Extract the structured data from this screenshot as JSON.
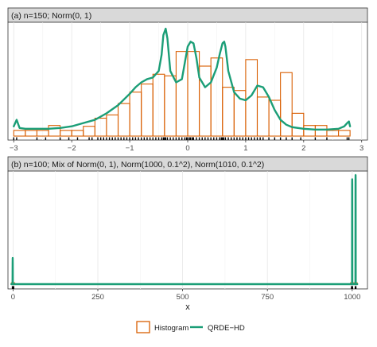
{
  "colors": {
    "histogram": "#D95F02",
    "density": "#1B9E77",
    "strip_bg": "#D9D9D9",
    "grid_major": "#E6E6E6",
    "grid_minor": "#F2F2F2",
    "rug": "#000000"
  },
  "chart_data": [
    {
      "type": "histogram",
      "panel_title": "(a) n=150; Norm(0, 1)",
      "xlim": [
        -3.1,
        3.1
      ],
      "x_ticks": [
        -3,
        -2,
        -1,
        0,
        1,
        2,
        3
      ],
      "x_tick_labels": [
        "−3",
        "−2",
        "−1",
        "0",
        "1",
        "2",
        "3"
      ],
      "grid": true,
      "series": [
        {
          "name": "Histogram",
          "kind": "histogram",
          "bin_edges": [
            -3.0,
            -2.8,
            -2.6,
            -2.4,
            -2.2,
            -2.0,
            -1.8,
            -1.6,
            -1.4,
            -1.2,
            -1.0,
            -0.8,
            -0.6,
            -0.4,
            -0.2,
            0.0,
            0.2,
            0.4,
            0.6,
            0.8,
            1.0,
            1.2,
            1.4,
            1.6,
            1.8,
            2.0,
            2.2,
            2.4,
            2.6,
            2.8
          ],
          "density": [
            0.035,
            0.035,
            0.035,
            0.065,
            0.035,
            0.035,
            0.06,
            0.11,
            0.13,
            0.2,
            0.27,
            0.32,
            0.38,
            0.37,
            0.52,
            0.52,
            0.43,
            0.48,
            0.3,
            0.28,
            0.47,
            0.24,
            0.22,
            0.39,
            0.14,
            0.065,
            0.065,
            0.035,
            0.035
          ]
        },
        {
          "name": "QRDE−HD",
          "kind": "line",
          "x": [
            -3.0,
            -2.95,
            -2.9,
            -2.8,
            -2.6,
            -2.4,
            -2.2,
            -2.0,
            -1.8,
            -1.6,
            -1.4,
            -1.2,
            -1.0,
            -0.9,
            -0.8,
            -0.7,
            -0.6,
            -0.5,
            -0.45,
            -0.42,
            -0.38,
            -0.35,
            -0.3,
            -0.2,
            -0.1,
            -0.05,
            0.0,
            0.05,
            0.1,
            0.15,
            0.2,
            0.3,
            0.4,
            0.5,
            0.55,
            0.6,
            0.63,
            0.65,
            0.7,
            0.8,
            0.9,
            1.0,
            1.1,
            1.2,
            1.3,
            1.4,
            1.5,
            1.6,
            1.7,
            1.8,
            2.0,
            2.2,
            2.4,
            2.6,
            2.7,
            2.75,
            2.78,
            2.8
          ],
          "y": [
            0.06,
            0.1,
            0.05,
            0.045,
            0.045,
            0.045,
            0.05,
            0.06,
            0.08,
            0.1,
            0.14,
            0.19,
            0.26,
            0.3,
            0.33,
            0.35,
            0.36,
            0.4,
            0.5,
            0.62,
            0.66,
            0.6,
            0.4,
            0.33,
            0.35,
            0.45,
            0.55,
            0.58,
            0.57,
            0.48,
            0.36,
            0.3,
            0.33,
            0.42,
            0.5,
            0.57,
            0.58,
            0.55,
            0.4,
            0.27,
            0.23,
            0.22,
            0.25,
            0.31,
            0.3,
            0.24,
            0.16,
            0.1,
            0.07,
            0.055,
            0.045,
            0.04,
            0.04,
            0.045,
            0.06,
            0.08,
            0.09,
            0.06
          ]
        }
      ],
      "rug": [
        -3.0,
        -2.95,
        -2.6,
        -2.45,
        -2.2,
        -2.05,
        -1.9,
        -1.7,
        -1.65,
        -1.55,
        -1.5,
        -1.45,
        -1.4,
        -1.35,
        -1.3,
        -1.25,
        -1.2,
        -1.15,
        -1.1,
        -1.05,
        -1.0,
        -0.95,
        -0.9,
        -0.85,
        -0.8,
        -0.75,
        -0.7,
        -0.65,
        -0.6,
        -0.55,
        -0.5,
        -0.45,
        -0.42,
        -0.4,
        -0.38,
        -0.35,
        -0.3,
        -0.25,
        -0.2,
        -0.15,
        -0.1,
        -0.05,
        -0.02,
        0.0,
        0.03,
        0.05,
        0.08,
        0.1,
        0.15,
        0.2,
        0.25,
        0.3,
        0.35,
        0.4,
        0.45,
        0.5,
        0.55,
        0.58,
        0.6,
        0.62,
        0.65,
        0.7,
        0.75,
        0.8,
        0.85,
        0.9,
        0.95,
        1.0,
        1.05,
        1.1,
        1.15,
        1.2,
        1.25,
        1.3,
        1.4,
        1.5,
        1.6,
        1.7,
        1.8,
        1.95,
        2.2,
        2.4,
        2.75,
        2.78
      ]
    },
    {
      "type": "histogram",
      "panel_title": "(b) n=100; Mix of Norm(0, 1), Norm(1000, 0.1^2), Norm(1010, 0.1^2)",
      "xlim": [
        -15,
        1045
      ],
      "x_ticks": [
        0,
        250,
        500,
        750,
        1000
      ],
      "x_tick_labels": [
        "0",
        "250",
        "500",
        "750",
        "1000"
      ],
      "xlabel": "x",
      "grid": true,
      "series": [
        {
          "name": "Histogram",
          "kind": "histogram",
          "bin_edges": [
            -5,
            5,
            995,
            1015
          ],
          "density": [
            0.012,
            0.0,
            0.012
          ]
        },
        {
          "name": "QRDE−HD",
          "kind": "line",
          "x": [
            -5,
            -1.5,
            -1.2,
            -1.0,
            -0.8,
            -0.5,
            5,
            995,
            999.5,
            999.8,
            1000,
            1000.2,
            1000.5,
            1004,
            1009.5,
            1009.8,
            1010,
            1010.2,
            1010.5,
            1015
          ],
          "y": [
            0.0,
            0.0,
            0.2,
            0.25,
            0.2,
            0.0,
            0.0,
            0.0,
            0.0,
            0.95,
            1.0,
            0.95,
            0.0,
            0.0,
            0.0,
            1.0,
            1.04,
            1.0,
            0.0,
            0.0
          ]
        }
      ],
      "rug": [
        -2,
        -1.5,
        -1,
        -0.5,
        0,
        0.5,
        1,
        1.5,
        2,
        998,
        999,
        999.5,
        1000,
        1000.5,
        1001,
        1009,
        1009.5,
        1010,
        1010.5,
        1011
      ]
    }
  ],
  "legend": {
    "position": "bottom",
    "entries": [
      {
        "label": "Histogram",
        "kind": "box"
      },
      {
        "label": "QRDE−HD",
        "kind": "line"
      }
    ]
  }
}
